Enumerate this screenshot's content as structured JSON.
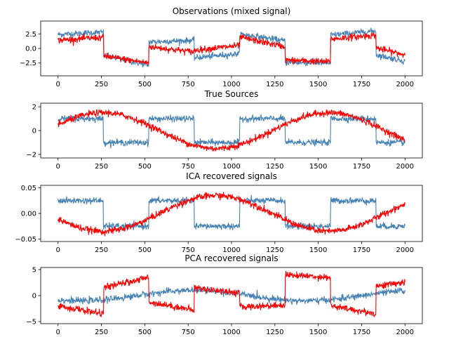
{
  "colors": {
    "series_1": "#ff0000",
    "series_2": "#4682b4",
    "background": "#ffffff",
    "axis": "#000000"
  },
  "chart_data": [
    {
      "type": "line",
      "title": "Observations (mixed signal)",
      "xlabel": "",
      "ylabel": "",
      "xlim": [
        -100,
        2100
      ],
      "ylim": [
        -4.7,
        4.7
      ],
      "xticks": [
        0,
        250,
        500,
        750,
        1000,
        1250,
        1500,
        1750,
        2000
      ],
      "xtick_labels": [
        "0",
        "250",
        "500",
        "750",
        "1000",
        "1250",
        "1500",
        "1750",
        "2000"
      ],
      "yticks": [
        -2.5,
        0.0,
        2.5
      ],
      "ytick_labels": [
        "−2.5",
        "0.0",
        "2.5"
      ],
      "grid": false,
      "series": [
        {
          "color": "#ff0000",
          "segments": [
            {
              "x0": 0,
              "x1": 262,
              "a": 1.4,
              "b": 1.9
            },
            {
              "x0": 262,
              "x1": 523,
              "a": -1.3,
              "b": -2.5
            },
            {
              "x0": 523,
              "x1": 785,
              "a": 0.3,
              "b": -0.6
            },
            {
              "x0": 785,
              "x1": 1047,
              "a": -0.3,
              "b": 0.5
            },
            {
              "x0": 1047,
              "x1": 1309,
              "a": 1.9,
              "b": 0.3
            },
            {
              "x0": 1309,
              "x1": 1571,
              "a": -2.0,
              "b": -2.3
            },
            {
              "x0": 1571,
              "x1": 1833,
              "a": 1.6,
              "b": 2.3
            },
            {
              "x0": 1833,
              "x1": 2000,
              "a": 0.1,
              "b": -1.1
            }
          ]
        },
        {
          "color": "#4682b4",
          "segments": [
            {
              "x0": 0,
              "x1": 262,
              "a": 2.4,
              "b": 2.8
            },
            {
              "x0": 262,
              "x1": 523,
              "a": -1.2,
              "b": -2.9
            },
            {
              "x0": 523,
              "x1": 785,
              "a": 1.1,
              "b": 1.4
            },
            {
              "x0": 785,
              "x1": 1047,
              "a": -1.6,
              "b": -0.9
            },
            {
              "x0": 1047,
              "x1": 1309,
              "a": 2.5,
              "b": 1.3
            },
            {
              "x0": 1309,
              "x1": 1571,
              "a": -2.4,
              "b": -2.5
            },
            {
              "x0": 1571,
              "x1": 1833,
              "a": 2.3,
              "b": 3.0
            },
            {
              "x0": 1833,
              "x1": 2000,
              "a": -1.1,
              "b": -2.2
            }
          ]
        }
      ]
    },
    {
      "type": "line",
      "title": "True Sources",
      "xlabel": "",
      "ylabel": "",
      "xlim": [
        -100,
        2100
      ],
      "ylim": [
        -2.3,
        2.3
      ],
      "xticks": [
        0,
        250,
        500,
        750,
        1000,
        1250,
        1500,
        1750,
        2000
      ],
      "xtick_labels": [
        "0",
        "250",
        "500",
        "750",
        "1000",
        "1250",
        "1500",
        "1750",
        "2000"
      ],
      "yticks": [
        -2,
        0,
        2
      ],
      "ytick_labels": [
        "−2",
        "0",
        "2"
      ],
      "grid": false,
      "series": [
        {
          "color": "#ff0000",
          "sine": {
            "amp": 1.5,
            "period": 1300,
            "phase": 0.05
          }
        },
        {
          "color": "#4682b4",
          "square": {
            "half_period": 262,
            "high": 1.0,
            "low": -1.0
          }
        }
      ]
    },
    {
      "type": "line",
      "title": "ICA recovered signals",
      "xlabel": "",
      "ylabel": "",
      "xlim": [
        -100,
        2100
      ],
      "ylim": [
        -0.055,
        0.055
      ],
      "xticks": [
        0,
        250,
        500,
        750,
        1000,
        1250,
        1500,
        1750,
        2000
      ],
      "xtick_labels": [
        "0",
        "250",
        "500",
        "750",
        "1000",
        "1250",
        "1500",
        "1750",
        "2000"
      ],
      "yticks": [
        -0.05,
        0.0,
        0.05
      ],
      "ytick_labels": [
        "−0.05",
        "0.00",
        "0.05"
      ],
      "grid": false,
      "series": [
        {
          "color": "#ff0000",
          "sine": {
            "amp": -0.035,
            "period": 1300,
            "phase": 0.05
          }
        },
        {
          "color": "#4682b4",
          "square": {
            "half_period": 262,
            "high": 0.025,
            "low": -0.025
          }
        }
      ]
    },
    {
      "type": "line",
      "title": "PCA recovered signals",
      "xlabel": "",
      "ylabel": "",
      "xlim": [
        -100,
        2100
      ],
      "ylim": [
        -5.4,
        5.4
      ],
      "xticks": [
        0,
        250,
        500,
        750,
        1000,
        1250,
        1500,
        1750,
        2000
      ],
      "xtick_labels": [
        "0",
        "250",
        "500",
        "750",
        "1000",
        "1250",
        "1500",
        "1750",
        "2000"
      ],
      "yticks": [
        -5,
        0,
        5
      ],
      "ytick_labels": [
        "−5",
        "0",
        "5"
      ],
      "grid": false,
      "series": [
        {
          "color": "#ff0000",
          "segments": [
            {
              "x0": 0,
              "x1": 262,
              "a": -2.0,
              "b": -3.5
            },
            {
              "x0": 262,
              "x1": 523,
              "a": 1.5,
              "b": 3.5
            },
            {
              "x0": 523,
              "x1": 785,
              "a": -1.2,
              "b": -2.8
            },
            {
              "x0": 785,
              "x1": 1047,
              "a": 1.5,
              "b": 0.5
            },
            {
              "x0": 1047,
              "x1": 1309,
              "a": -2.2,
              "b": -1.8
            },
            {
              "x0": 1309,
              "x1": 1571,
              "a": 4.0,
              "b": 3.5
            },
            {
              "x0": 1571,
              "x1": 1833,
              "a": -2.0,
              "b": -3.5
            },
            {
              "x0": 1833,
              "x1": 2000,
              "a": 1.8,
              "b": 2.6
            }
          ]
        },
        {
          "color": "#4682b4",
          "sine": {
            "amp": 1.0,
            "period": 1300,
            "phase": -0.35
          }
        }
      ]
    }
  ]
}
